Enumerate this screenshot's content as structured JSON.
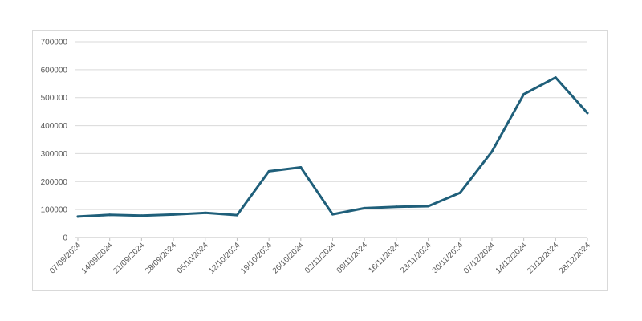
{
  "chart_data": {
    "type": "line",
    "title": "",
    "xlabel": "",
    "ylabel": "",
    "ylim": [
      0,
      700000
    ],
    "yticks": [
      0,
      100000,
      200000,
      300000,
      400000,
      500000,
      600000,
      700000
    ],
    "grid": true,
    "legend": "none",
    "categories": [
      "07/09/2024",
      "14/09/2024",
      "21/09/2024",
      "28/09/2024",
      "05/10/2024",
      "12/10/2024",
      "19/10/2024",
      "26/10/2024",
      "02/11/2024",
      "09/11/2024",
      "16/11/2024",
      "23/11/2024",
      "30/11/2024",
      "07/12/2024",
      "14/12/2024",
      "21/12/2024",
      "28/12/2024"
    ],
    "series": [
      {
        "color": "#1f5f7a",
        "values": [
          75000,
          81000,
          78000,
          82000,
          88000,
          80000,
          237000,
          251000,
          83000,
          105000,
          110000,
          112000,
          160000,
          307000,
          512000,
          572000,
          445000
        ]
      }
    ]
  }
}
